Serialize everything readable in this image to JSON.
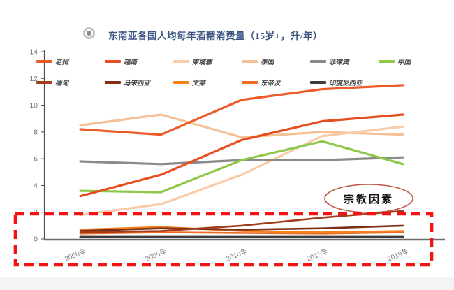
{
  "title": {
    "text": "东南亚各国人均每年酒精消费量（15岁+，升/年）",
    "bullet_icon": "radio-bullet-icon"
  },
  "annotation": {
    "text": "宗教因素"
  },
  "colors": {
    "title": "#3a5380",
    "dashed_box": "#f31313",
    "ellipse_stroke": "#c05a4b",
    "axis": "#6b6b6b",
    "tick_label": "#767676"
  },
  "chart_data": {
    "type": "line",
    "title": "东南亚各国人均每年酒精消费量（15岁+，升/年）",
    "categories": [
      "2000年",
      "2005年",
      "2010年",
      "2015年",
      "2019年"
    ],
    "series": [
      {
        "name": "老挝",
        "color": "#eb5b28",
        "values": [
          8.2,
          7.8,
          10.4,
          11.2,
          11.5
        ]
      },
      {
        "name": "越南",
        "color": "#e64d1f",
        "values": [
          3.2,
          4.8,
          7.4,
          8.8,
          9.3
        ]
      },
      {
        "name": "柬埔寨",
        "color": "#f9cba8",
        "values": [
          1.8,
          2.6,
          4.8,
          7.7,
          8.4
        ]
      },
      {
        "name": "泰国",
        "color": "#f6c096",
        "values": [
          8.5,
          9.3,
          7.6,
          8.0,
          7.8
        ]
      },
      {
        "name": "菲律宾",
        "color": "#8a8a8a",
        "values": [
          5.8,
          5.6,
          5.9,
          5.9,
          6.1
        ]
      },
      {
        "name": "中国",
        "color": "#8fc74a",
        "values": [
          3.6,
          3.5,
          5.9,
          7.3,
          5.6
        ]
      },
      {
        "name": "缅甸",
        "color": "#a03d1d",
        "values": [
          0.5,
          0.6,
          1.0,
          1.6,
          2.1
        ]
      },
      {
        "name": "马来西亚",
        "color": "#7e3015",
        "values": [
          0.6,
          0.8,
          0.7,
          0.8,
          1.0
        ]
      },
      {
        "name": "文莱",
        "color": "#f5801e",
        "values": [
          0.7,
          0.9,
          0.6,
          0.5,
          0.6
        ]
      },
      {
        "name": "东帝汶",
        "color": "#ee6c1e",
        "values": [
          0.4,
          0.5,
          0.45,
          0.4,
          0.5
        ]
      },
      {
        "name": "印度尼西亚",
        "color": "#3c3c3c",
        "values": [
          0.15,
          0.15,
          0.15,
          0.15,
          0.15
        ]
      }
    ],
    "ylim": [
      0,
      14
    ],
    "yticks": [
      0,
      2,
      4,
      6,
      8,
      10,
      12,
      14
    ],
    "grid": false,
    "legend_position": "top",
    "legend_rows": [
      [
        0,
        1,
        2,
        3,
        4,
        5
      ],
      [
        6,
        7,
        8,
        9,
        10
      ]
    ],
    "annotations": [
      {
        "text": "宗教因素",
        "shape": "ellipse"
      },
      {
        "shape": "dashed-box",
        "meaning": "low-consumption countries highlight"
      }
    ]
  }
}
